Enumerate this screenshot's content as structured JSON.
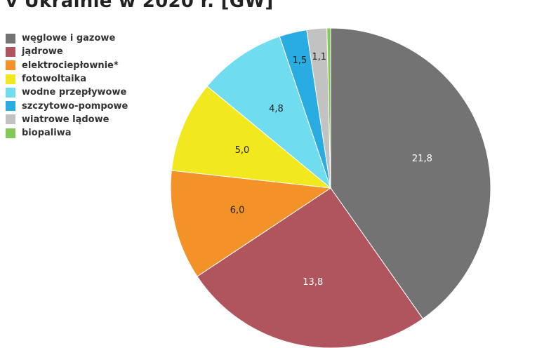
{
  "title": "v Ukrainie w 2020 r. [GW]",
  "chart_data": {
    "type": "pie",
    "title": "v Ukrainie w 2020 r. [GW]",
    "legend_position": "left",
    "slices": [
      {
        "label": "węglowe i gazowe",
        "value": 21.8,
        "display": "21,8",
        "color": "#737373",
        "text_color": "#ffffff"
      },
      {
        "label": "jądrowe",
        "value": 13.8,
        "display": "13,8",
        "color": "#b0555e",
        "text_color": "#ffffff"
      },
      {
        "label": "elektrociepłownie*",
        "value": 6.0,
        "display": "6,0",
        "color": "#f39229",
        "text_color": "#222222"
      },
      {
        "label": "fotowoltaika",
        "value": 5.0,
        "display": "5,0",
        "color": "#f2e81e",
        "text_color": "#222222"
      },
      {
        "label": "wodne przepływowe",
        "value": 4.8,
        "display": "4,8",
        "color": "#6fdcf0",
        "text_color": "#222222"
      },
      {
        "label": "szczytowo-pompowe",
        "value": 1.5,
        "display": "1,5",
        "color": "#28ace2",
        "text_color": "#222222"
      },
      {
        "label": "wiatrowe lądowe",
        "value": 1.1,
        "display": "1,1",
        "color": "#c2c2c2",
        "text_color": "#222222"
      },
      {
        "label": "biopaliwa",
        "value": 0.2,
        "display": "",
        "color": "#86c75a",
        "text_color": "#222222"
      }
    ]
  }
}
